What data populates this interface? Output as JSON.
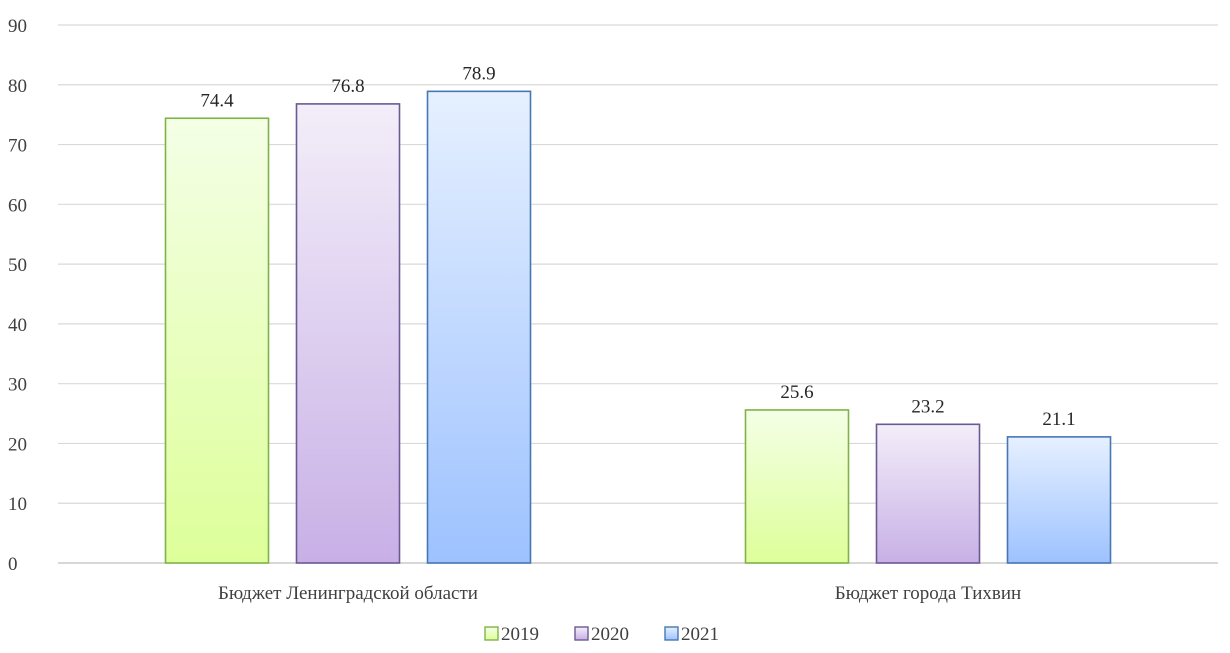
{
  "chart_data": {
    "type": "bar",
    "categories": [
      "Бюджет Ленинградской области",
      "Бюджет города Тихвин"
    ],
    "series": [
      {
        "name": "2019",
        "values": [
          74.4,
          25.6
        ],
        "colors": {
          "top": "#f4ffe6",
          "bottom": "#ddff99",
          "stroke": "#7fb347"
        }
      },
      {
        "name": "2020",
        "values": [
          76.8,
          23.2
        ],
        "colors": {
          "top": "#f3eef9",
          "bottom": "#c8b0e6",
          "stroke": "#6b5a92"
        }
      },
      {
        "name": "2021",
        "values": [
          78.9,
          21.1
        ],
        "colors": {
          "top": "#e6f0ff",
          "bottom": "#9dc2ff",
          "stroke": "#4677b5"
        }
      }
    ],
    "ylim": [
      0,
      90
    ],
    "yticks": [
      0,
      10,
      20,
      30,
      40,
      50,
      60,
      70,
      80,
      90
    ],
    "grid": true,
    "legend": "bottom-center",
    "title": "",
    "xlabel": "",
    "ylabel": ""
  }
}
